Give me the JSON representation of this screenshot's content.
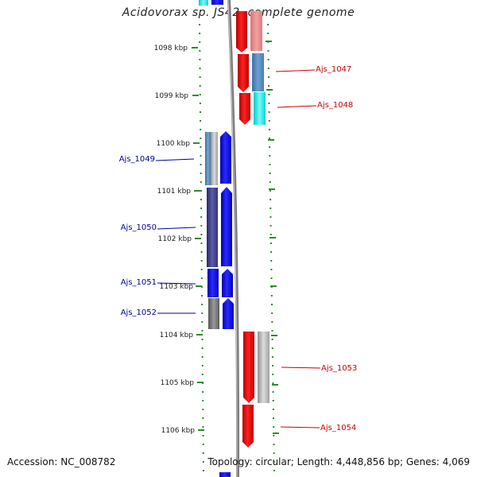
{
  "title": "Acidovorax sp. JS42, complete genome",
  "footer": {
    "accession": "Accession: NC_008782",
    "topology": "Topology: circular; Length: 4,448,856 bp; Genes: 4,069"
  },
  "colors": {
    "forward_gene": "#ff0000",
    "reverse_gene": "#0000ff",
    "forward_label": "#cc0000",
    "reverse_label": "#000099",
    "tick": "#2e8b2e",
    "backbone": "#808080"
  },
  "ticks": [
    {
      "label": "1098 kbp"
    },
    {
      "label": "1099 kbp"
    },
    {
      "label": "1100 kbp"
    },
    {
      "label": "1101 kbp"
    },
    {
      "label": "1102 kbp"
    },
    {
      "label": "1103 kbp"
    },
    {
      "label": "1104 kbp"
    },
    {
      "label": "1105 kbp"
    },
    {
      "label": "1106 kbp"
    }
  ],
  "forward_genes": [
    {
      "label": "Ajs_1047"
    },
    {
      "label": "Ajs_1048"
    },
    {
      "label": "Ajs_1053"
    },
    {
      "label": "Ajs_1054"
    }
  ],
  "reverse_genes": [
    {
      "label": "Ajs_1049"
    },
    {
      "label": "Ajs_1050"
    },
    {
      "label": "Ajs_1051"
    },
    {
      "label": "Ajs_1052"
    }
  ]
}
